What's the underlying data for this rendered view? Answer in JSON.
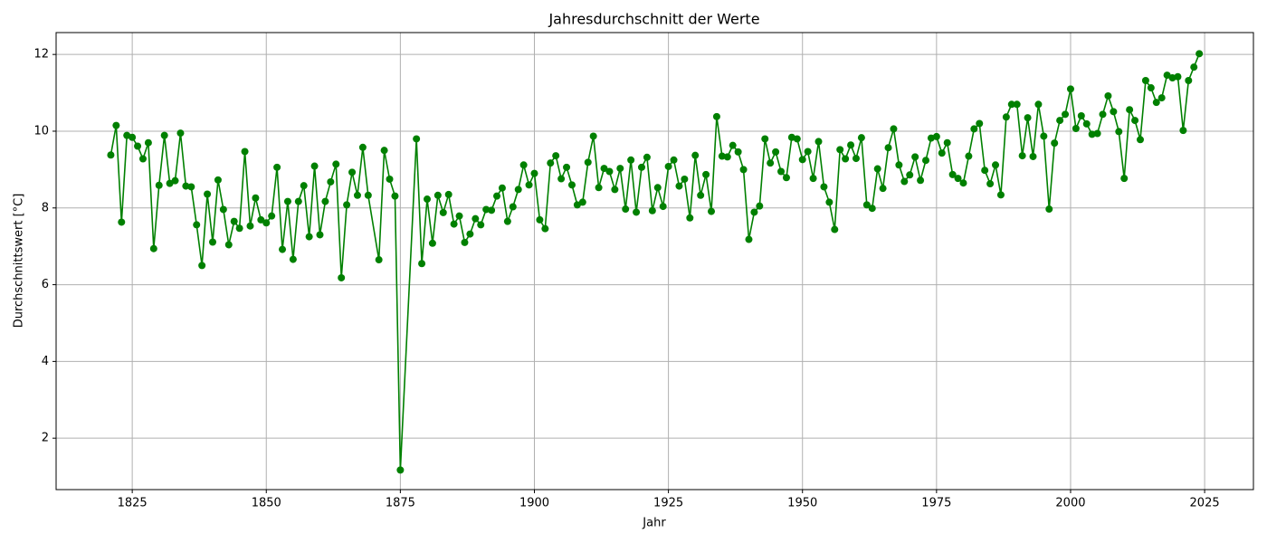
{
  "chart_data": {
    "type": "line",
    "title": "Jahresdurchschnitt der Werte",
    "x_label": "Jahr",
    "y_label": "Durchschnittswert [°C]",
    "x": [
      1821,
      1822,
      1823,
      1824,
      1825,
      1826,
      1827,
      1828,
      1829,
      1830,
      1831,
      1832,
      1833,
      1834,
      1835,
      1836,
      1837,
      1838,
      1839,
      1840,
      1841,
      1842,
      1843,
      1844,
      1845,
      1846,
      1847,
      1848,
      1849,
      1850,
      1851,
      1852,
      1853,
      1854,
      1855,
      1856,
      1857,
      1858,
      1859,
      1860,
      1861,
      1862,
      1863,
      1864,
      1865,
      1866,
      1867,
      1868,
      1869,
      1871,
      1872,
      1873,
      1874,
      1875,
      1878,
      1879,
      1880,
      1881,
      1882,
      1883,
      1884,
      1885,
      1886,
      1887,
      1888,
      1889,
      1890,
      1891,
      1892,
      1893,
      1894,
      1895,
      1896,
      1897,
      1898,
      1899,
      1900,
      1901,
      1902,
      1903,
      1904,
      1905,
      1906,
      1907,
      1908,
      1909,
      1910,
      1911,
      1912,
      1913,
      1914,
      1915,
      1916,
      1917,
      1918,
      1919,
      1920,
      1921,
      1922,
      1923,
      1924,
      1925,
      1926,
      1927,
      1928,
      1929,
      1930,
      1931,
      1932,
      1933,
      1934,
      1935,
      1936,
      1937,
      1938,
      1939,
      1940,
      1941,
      1942,
      1943,
      1944,
      1945,
      1946,
      1947,
      1948,
      1949,
      1950,
      1951,
      1952,
      1953,
      1954,
      1955,
      1956,
      1957,
      1958,
      1959,
      1960,
      1961,
      1962,
      1963,
      1964,
      1965,
      1966,
      1967,
      1968,
      1969,
      1970,
      1971,
      1972,
      1973,
      1974,
      1975,
      1976,
      1977,
      1978,
      1979,
      1980,
      1981,
      1982,
      1983,
      1984,
      1985,
      1986,
      1987,
      1988,
      1989,
      1990,
      1991,
      1992,
      1993,
      1994,
      1995,
      1996,
      1997,
      1998,
      1999,
      2000,
      2001,
      2002,
      2003,
      2004,
      2005,
      2006,
      2007,
      2008,
      2009,
      2010,
      2011,
      2012,
      2013,
      2014,
      2015,
      2016,
      2017,
      2018,
      2019,
      2020,
      2021,
      2022,
      2023,
      2024
    ],
    "series": [
      {
        "color": "#008000",
        "values": [
          9.38,
          10.15,
          7.63,
          9.89,
          9.84,
          9.61,
          9.28,
          9.7,
          6.94,
          8.59,
          9.89,
          8.64,
          8.71,
          9.95,
          8.57,
          8.55,
          7.56,
          6.5,
          8.36,
          7.11,
          8.73,
          7.96,
          7.04,
          7.65,
          7.47,
          9.47,
          7.53,
          8.26,
          7.69,
          7.61,
          7.79,
          9.06,
          6.92,
          8.17,
          6.66,
          8.17,
          8.58,
          7.25,
          9.09,
          7.3,
          8.17,
          8.68,
          9.14,
          6.18,
          8.08,
          8.93,
          8.33,
          9.58,
          8.33,
          6.65,
          9.5,
          8.75,
          8.31,
          1.17,
          9.8,
          6.55,
          8.23,
          7.08,
          8.33,
          7.88,
          8.35,
          7.58,
          7.79,
          7.1,
          7.32,
          7.72,
          7.56,
          7.96,
          7.94,
          8.31,
          8.52,
          7.65,
          8.03,
          8.48,
          9.12,
          8.6,
          8.9,
          7.69,
          7.46,
          9.17,
          9.36,
          8.76,
          9.06,
          8.6,
          8.08,
          8.15,
          9.19,
          9.87,
          8.53,
          9.03,
          8.95,
          8.48,
          9.03,
          7.97,
          9.25,
          7.89,
          9.06,
          9.32,
          7.93,
          8.53,
          8.04,
          9.08,
          9.25,
          8.57,
          8.75,
          7.74,
          9.37,
          8.33,
          8.87,
          7.91,
          10.38,
          9.35,
          9.33,
          9.63,
          9.46,
          9.0,
          7.18,
          7.89,
          8.05,
          9.8,
          9.17,
          9.46,
          8.95,
          8.79,
          9.84,
          9.8,
          9.26,
          9.47,
          8.77,
          9.73,
          8.55,
          8.15,
          7.44,
          9.52,
          9.28,
          9.64,
          9.29,
          9.83,
          8.08,
          7.99,
          9.02,
          8.51,
          9.57,
          10.06,
          9.12,
          8.69,
          8.86,
          9.33,
          8.72,
          9.24,
          9.82,
          9.86,
          9.43,
          9.7,
          8.87,
          8.77,
          8.65,
          9.35,
          10.06,
          10.2,
          8.98,
          8.63,
          9.12,
          8.34,
          10.37,
          10.7,
          10.7,
          9.36,
          10.35,
          9.34,
          10.7,
          9.87,
          7.97,
          9.69,
          10.28,
          10.44,
          11.1,
          10.07,
          10.4,
          10.19,
          9.92,
          9.94,
          10.44,
          10.92,
          10.51,
          9.99,
          8.77,
          10.56,
          10.28,
          9.78,
          11.32,
          11.13,
          10.75,
          10.87,
          11.46,
          11.39,
          11.42,
          10.02,
          11.32,
          11.67,
          12.02
        ]
      }
    ],
    "xlim": [
      1810.8,
      2034.1
    ],
    "ylim": [
      0.66,
      12.57
    ],
    "xticks": [
      1825,
      1850,
      1875,
      1900,
      1925,
      1950,
      1975,
      2000,
      2025
    ],
    "yticks": [
      2,
      4,
      6,
      8,
      10,
      12
    ],
    "grid": true
  }
}
